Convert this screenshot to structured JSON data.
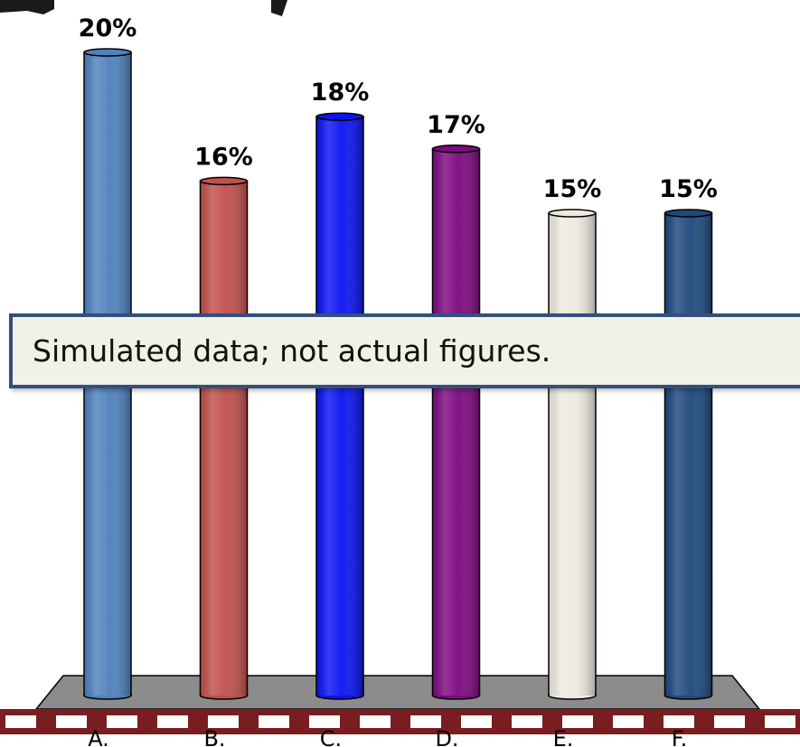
{
  "chart_data": {
    "type": "bar",
    "categories": [
      "A.",
      "B.",
      "C.",
      "D.",
      "E.",
      "F."
    ],
    "values": [
      20,
      16,
      18,
      17,
      15,
      15
    ],
    "value_labels": [
      "20%",
      "16%",
      "18%",
      "17%",
      "15%",
      "15%"
    ],
    "bar_colors": [
      "#4f81bd",
      "#c0504d",
      "#0b14f2",
      "#7d0a80",
      "#eeeae0",
      "#1f497d"
    ],
    "title": "",
    "xlabel": "",
    "ylabel": "",
    "ylim": [
      0,
      20
    ],
    "grid": false,
    "legend": "none",
    "style": "3d-cylinder"
  },
  "note": {
    "text": "Simulated data; not actual figures."
  },
  "colors": {
    "floor": "#8c8c8c",
    "rail": "#7a1d20",
    "note_border": "#34507a",
    "note_background": "#f1f1e6"
  }
}
